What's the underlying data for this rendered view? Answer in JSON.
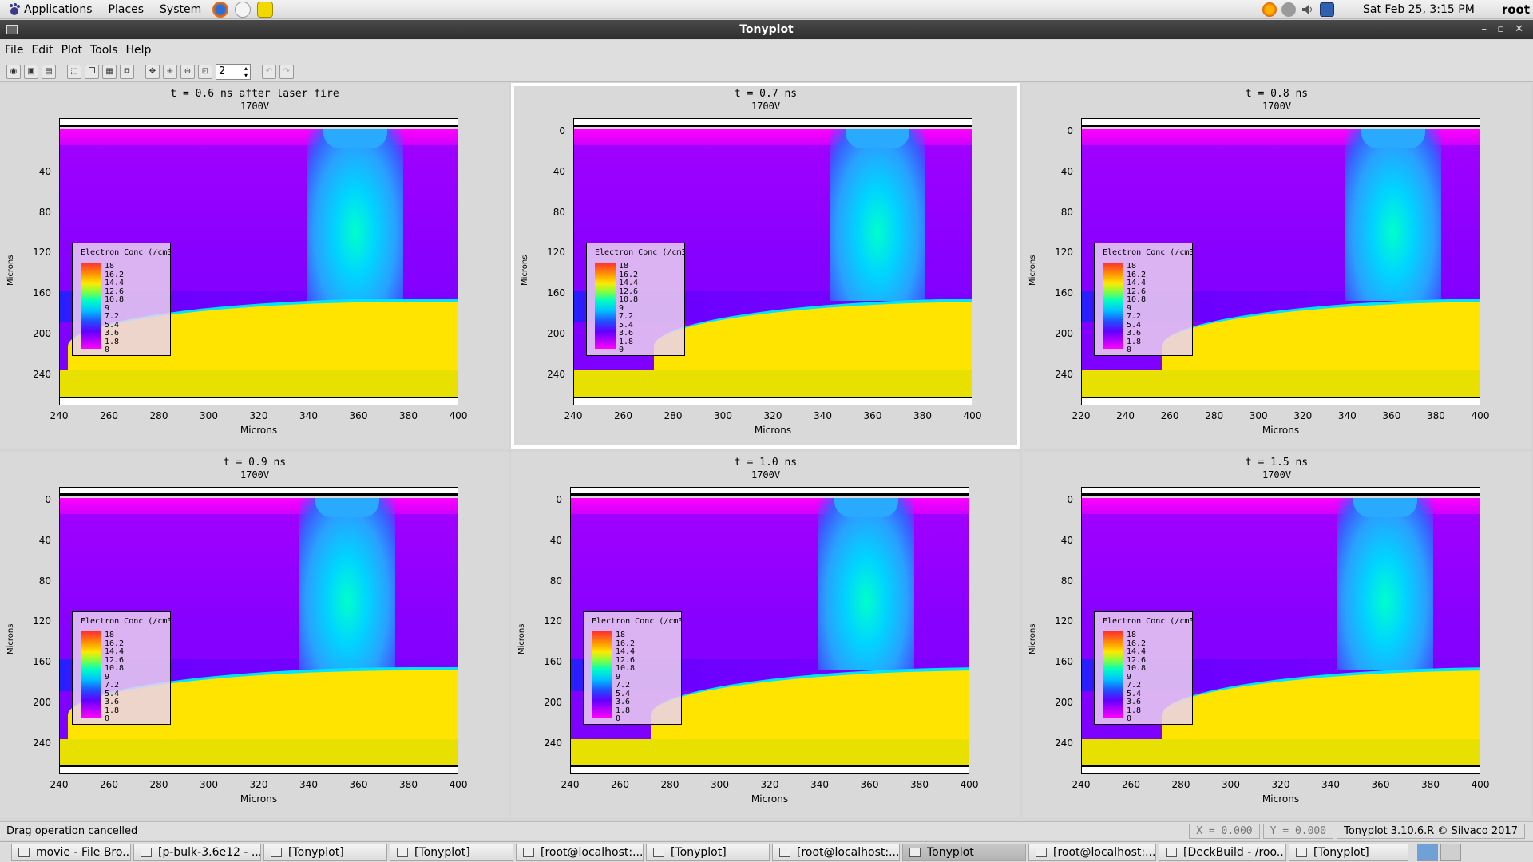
{
  "top_panel": {
    "menus": [
      "Applications",
      "Places",
      "System"
    ],
    "clock": "Sat Feb 25,  3:15 PM",
    "user": "root"
  },
  "window": {
    "title": "Tonyplot",
    "menubar": [
      "File",
      "Edit",
      "Plot",
      "Tools",
      "Help"
    ],
    "zoom_spin_value": "2"
  },
  "panels": [
    {
      "title": "t = 0.6 ns after laser fire",
      "subtitle": "1700V",
      "legend_title": "Electron Conc (/cm3",
      "x_ticks": [
        "240",
        "260",
        "280",
        "300",
        "320",
        "340",
        "360",
        "380",
        "400"
      ],
      "y_ticks": [
        "40",
        "80",
        "120",
        "160",
        "200",
        "240"
      ],
      "xlabel": "Microns",
      "ylabel": "Microns"
    },
    {
      "title": "t = 0.7 ns",
      "subtitle": "1700V",
      "legend_title": "Electron Conc (/cm3",
      "x_ticks": [
        "240",
        "260",
        "280",
        "300",
        "320",
        "340",
        "360",
        "380",
        "400"
      ],
      "y_ticks": [
        "0",
        "40",
        "80",
        "120",
        "160",
        "200",
        "240"
      ],
      "xlabel": "Microns",
      "ylabel": "Microns"
    },
    {
      "title": "t = 0.8 ns",
      "subtitle": "1700V",
      "legend_title": "Electron Conc (/cm3",
      "x_ticks": [
        "220",
        "240",
        "260",
        "280",
        "300",
        "320",
        "340",
        "360",
        "380",
        "400"
      ],
      "y_ticks": [
        "0",
        "40",
        "80",
        "120",
        "160",
        "200",
        "240"
      ],
      "xlabel": "Microns",
      "ylabel": "Microns"
    },
    {
      "title": "t = 0.9 ns",
      "subtitle": "1700V",
      "legend_title": "Electron Conc (/cm3",
      "x_ticks": [
        "240",
        "260",
        "280",
        "300",
        "320",
        "340",
        "360",
        "380",
        "400"
      ],
      "y_ticks": [
        "0",
        "40",
        "80",
        "120",
        "160",
        "200",
        "240"
      ],
      "xlabel": "Microns",
      "ylabel": "Microns"
    },
    {
      "title": "t = 1.0 ns",
      "subtitle": "1700V",
      "legend_title": "Electron Conc (/cm3",
      "x_ticks": [
        "240",
        "260",
        "280",
        "300",
        "320",
        "340",
        "360",
        "380",
        "400"
      ],
      "y_ticks": [
        "0",
        "40",
        "80",
        "120",
        "160",
        "200",
        "240"
      ],
      "xlabel": "Microns",
      "ylabel": "Microns"
    },
    {
      "title": "t = 1.5 ns",
      "subtitle": "1700V",
      "legend_title": "Electron Conc (/cm3",
      "x_ticks": [
        "240",
        "260",
        "280",
        "300",
        "320",
        "340",
        "360",
        "380",
        "400"
      ],
      "y_ticks": [
        "0",
        "40",
        "80",
        "120",
        "160",
        "200",
        "240"
      ],
      "xlabel": "Microns",
      "ylabel": "Microns"
    }
  ],
  "legend_values": [
    "18",
    "16.2",
    "14.4",
    "12.6",
    "10.8",
    "9",
    "7.2",
    "5.4",
    "3.6",
    "1.8",
    "0"
  ],
  "status": {
    "message": "Drag operation cancelled",
    "x": "X = 0.000",
    "y": "Y = 0.000",
    "copyright": "Tonyplot 3.10.6.R © Silvaco 2017"
  },
  "taskbar": [
    {
      "label": "movie - File Bro..."
    },
    {
      "label": "[p-bulk-3.6e12 - ..."
    },
    {
      "label": "[Tonyplot]"
    },
    {
      "label": "[Tonyplot]"
    },
    {
      "label": "[root@localhost:..."
    },
    {
      "label": "[Tonyplot]"
    },
    {
      "label": "[root@localhost:..."
    },
    {
      "label": "Tonyplot"
    },
    {
      "label": "[root@localhost:..."
    },
    {
      "label": "[DeckBuild - /roo..."
    },
    {
      "label": "[Tonyplot]"
    }
  ]
}
